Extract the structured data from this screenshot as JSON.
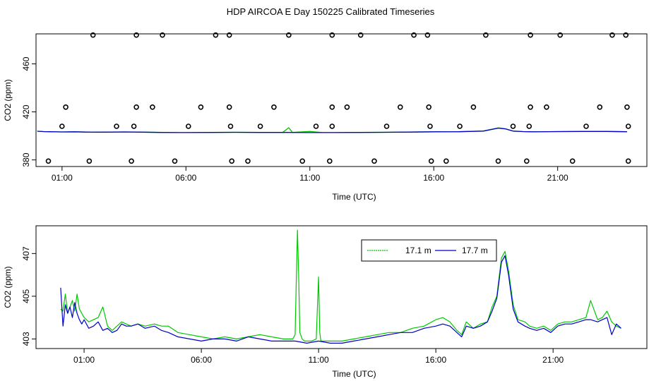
{
  "title": "HDP AIRCOA E  Day 150225  Calibrated Timeseries",
  "chart_data": [
    {
      "type": "scatter",
      "xlabel": "Time (UTC)",
      "ylabel": "CO2 (ppm)",
      "x_ticks": [
        {
          "value": 1,
          "label": "01:00"
        },
        {
          "value": 6,
          "label": "06:00"
        },
        {
          "value": 11,
          "label": "11:00"
        },
        {
          "value": 16,
          "label": "16:00"
        },
        {
          "value": 21,
          "label": "21:00"
        }
      ],
      "y_ticks": [
        380,
        420,
        460
      ],
      "xlim": [
        -0.05,
        24.6
      ],
      "ylim": [
        374.5,
        485
      ],
      "grid": false,
      "calibration_points": [
        {
          "x": 1.15,
          "y": 424
        },
        {
          "x": 2.25,
          "y": 484
        },
        {
          "x": 4.0,
          "y": 484
        },
        {
          "x": 5.05,
          "y": 484
        },
        {
          "x": 7.2,
          "y": 484
        },
        {
          "x": 7.75,
          "y": 484
        },
        {
          "x": 10.15,
          "y": 484
        },
        {
          "x": 11.9,
          "y": 484
        },
        {
          "x": 13.05,
          "y": 484
        },
        {
          "x": 15.2,
          "y": 484
        },
        {
          "x": 15.75,
          "y": 484
        },
        {
          "x": 18.1,
          "y": 484
        },
        {
          "x": 19.9,
          "y": 484
        },
        {
          "x": 21.1,
          "y": 484
        },
        {
          "x": 23.2,
          "y": 484
        },
        {
          "x": 23.75,
          "y": 484
        },
        {
          "x": 0.45,
          "y": 379
        },
        {
          "x": 2.1,
          "y": 379
        },
        {
          "x": 3.8,
          "y": 379
        },
        {
          "x": 5.55,
          "y": 379
        },
        {
          "x": 7.85,
          "y": 379
        },
        {
          "x": 8.5,
          "y": 379
        },
        {
          "x": 10.7,
          "y": 379
        },
        {
          "x": 11.8,
          "y": 379
        },
        {
          "x": 13.6,
          "y": 379
        },
        {
          "x": 15.9,
          "y": 379
        },
        {
          "x": 16.5,
          "y": 379
        },
        {
          "x": 18.6,
          "y": 379
        },
        {
          "x": 19.75,
          "y": 379
        },
        {
          "x": 21.6,
          "y": 379
        },
        {
          "x": 23.85,
          "y": 379
        },
        {
          "x": 4.0,
          "y": 424
        },
        {
          "x": 4.65,
          "y": 424
        },
        {
          "x": 6.6,
          "y": 424
        },
        {
          "x": 7.75,
          "y": 424
        },
        {
          "x": 9.55,
          "y": 424
        },
        {
          "x": 11.9,
          "y": 424
        },
        {
          "x": 12.5,
          "y": 424
        },
        {
          "x": 14.65,
          "y": 424
        },
        {
          "x": 15.8,
          "y": 424
        },
        {
          "x": 17.6,
          "y": 424
        },
        {
          "x": 19.9,
          "y": 424
        },
        {
          "x": 20.55,
          "y": 424
        },
        {
          "x": 22.7,
          "y": 424
        },
        {
          "x": 23.8,
          "y": 424
        },
        {
          "x": 1.0,
          "y": 408
        },
        {
          "x": 3.2,
          "y": 408
        },
        {
          "x": 3.9,
          "y": 408
        },
        {
          "x": 6.1,
          "y": 408
        },
        {
          "x": 7.8,
          "y": 408
        },
        {
          "x": 9.0,
          "y": 408
        },
        {
          "x": 11.25,
          "y": 408
        },
        {
          "x": 11.9,
          "y": 408
        },
        {
          "x": 14.1,
          "y": 408
        },
        {
          "x": 15.85,
          "y": 408
        },
        {
          "x": 17.05,
          "y": 408
        },
        {
          "x": 19.2,
          "y": 408
        },
        {
          "x": 19.85,
          "y": 408
        },
        {
          "x": 22.15,
          "y": 408
        },
        {
          "x": 23.85,
          "y": 408
        }
      ],
      "series": [
        {
          "color": "#00c800",
          "x": [
            0,
            0.25,
            0.5,
            1,
            1.5,
            2,
            2.5,
            3,
            3.5,
            4,
            5,
            6,
            7,
            8,
            9,
            9.9,
            10.15,
            10.3,
            11,
            11.5,
            12,
            13,
            14,
            15,
            16,
            17,
            18,
            18.6,
            18.9,
            19.2,
            19.6,
            20,
            21,
            22,
            23,
            23.8
          ],
          "y": [
            403.9,
            403.6,
            403.5,
            403.3,
            403.4,
            403.2,
            403.1,
            403.2,
            403.3,
            403.2,
            402.9,
            402.8,
            402.9,
            403.0,
            402.9,
            402.9,
            406.8,
            402.9,
            403.7,
            402.8,
            402.8,
            402.9,
            403.0,
            403.2,
            403.4,
            403.5,
            404.1,
            406.7,
            405.9,
            404.0,
            403.6,
            403.4,
            403.6,
            403.7,
            403.7,
            403.5
          ]
        },
        {
          "color": "#0000c8",
          "x": [
            0,
            0.25,
            0.5,
            1,
            1.5,
            2,
            2.5,
            3,
            3.5,
            4,
            5,
            6,
            7,
            8,
            9,
            10,
            11,
            12,
            13,
            14,
            15,
            16,
            17,
            18,
            18.6,
            18.9,
            19.2,
            19.6,
            20,
            21,
            22,
            23,
            23.8
          ],
          "y": [
            403.9,
            403.6,
            403.5,
            403.3,
            403.4,
            403.2,
            403.1,
            403.2,
            403.3,
            403.2,
            402.9,
            402.8,
            402.9,
            403.0,
            402.9,
            402.9,
            402.8,
            402.8,
            402.9,
            403.0,
            403.2,
            403.4,
            403.5,
            404.0,
            406.5,
            405.8,
            404.0,
            403.6,
            403.4,
            403.6,
            403.7,
            403.7,
            403.5
          ]
        }
      ]
    },
    {
      "type": "line",
      "xlabel": "Time (UTC)",
      "ylabel": "CO2 (ppm)",
      "x_ticks": [
        {
          "value": 1,
          "label": "01:00"
        },
        {
          "value": 6,
          "label": "06:00"
        },
        {
          "value": 11,
          "label": "11:00"
        },
        {
          "value": 16,
          "label": "16:00"
        },
        {
          "value": 21,
          "label": "21:00"
        }
      ],
      "y_ticks": [
        403,
        405,
        407
      ],
      "xlim": [
        -1.05,
        25.0
      ],
      "ylim": [
        402.55,
        408.3
      ],
      "grid": false,
      "legend": {
        "position": "top-right",
        "entries": [
          "17.1 m",
          "17.7 m"
        ]
      },
      "series": [
        {
          "name": "17.1 m",
          "color": "#00c800",
          "x": [
            0,
            0.1,
            0.2,
            0.3,
            0.4,
            0.5,
            0.6,
            0.7,
            0.8,
            0.9,
            1.0,
            1.2,
            1.4,
            1.6,
            1.8,
            2.0,
            2.2,
            2.4,
            2.6,
            2.8,
            3.0,
            3.3,
            3.6,
            4.0,
            4.3,
            4.6,
            5.0,
            5.5,
            6.0,
            6.5,
            7.0,
            7.5,
            8.0,
            8.5,
            9.0,
            9.5,
            9.9,
            10.0,
            10.05,
            10.1,
            10.15,
            10.2,
            10.3,
            10.4,
            10.7,
            10.9,
            11.0,
            11.05,
            11.1,
            11.2,
            11.5,
            12.0,
            12.5,
            13.0,
            13.5,
            14.0,
            14.5,
            15.0,
            15.5,
            16.0,
            16.3,
            16.6,
            16.9,
            17.1,
            17.3,
            17.6,
            17.9,
            18.2,
            18.4,
            18.6,
            18.8,
            18.95,
            19.1,
            19.3,
            19.5,
            19.8,
            20.0,
            20.3,
            20.6,
            20.9,
            21.2,
            21.5,
            21.8,
            22.1,
            22.4,
            22.6,
            22.9,
            23.1,
            23.3,
            23.5,
            23.7,
            23.9
          ],
          "y": [
            404.4,
            404.3,
            405.1,
            404.2,
            404.5,
            404.8,
            404.3,
            405.1,
            404.4,
            404.2,
            404.0,
            403.8,
            403.9,
            404.0,
            404.5,
            403.6,
            403.4,
            403.6,
            403.8,
            403.7,
            403.6,
            403.7,
            403.6,
            403.7,
            403.6,
            403.6,
            403.3,
            403.2,
            403.1,
            403.0,
            403.1,
            403.0,
            403.1,
            403.2,
            403.1,
            403.0,
            403.0,
            403.2,
            405.8,
            408.1,
            406.0,
            403.3,
            403.0,
            402.9,
            402.9,
            403.0,
            405.9,
            403.3,
            402.9,
            402.9,
            402.9,
            402.9,
            403.0,
            403.1,
            403.2,
            403.3,
            403.3,
            403.5,
            403.6,
            403.9,
            404.0,
            403.8,
            403.4,
            403.2,
            403.8,
            403.5,
            403.7,
            403.8,
            404.5,
            405.0,
            406.8,
            407.1,
            406.2,
            404.6,
            403.9,
            403.8,
            403.6,
            403.5,
            403.6,
            403.4,
            403.7,
            403.8,
            403.8,
            403.9,
            404.0,
            404.8,
            403.9,
            404.0,
            404.3,
            403.8,
            403.6,
            403.5
          ]
        },
        {
          "name": "17.7 m",
          "color": "#0000c8",
          "x": [
            0,
            0.1,
            0.2,
            0.3,
            0.4,
            0.5,
            0.6,
            0.7,
            0.8,
            0.9,
            1.0,
            1.2,
            1.4,
            1.6,
            1.8,
            2.0,
            2.2,
            2.4,
            2.6,
            2.8,
            3.0,
            3.3,
            3.6,
            4.0,
            4.3,
            4.6,
            5.0,
            5.5,
            6.0,
            6.5,
            7.0,
            7.5,
            8.0,
            8.5,
            9.0,
            9.5,
            10.0,
            10.5,
            11.0,
            11.5,
            12.0,
            12.5,
            13.0,
            13.5,
            14.0,
            14.5,
            15.0,
            15.5,
            16.0,
            16.3,
            16.6,
            16.9,
            17.1,
            17.3,
            17.6,
            17.9,
            18.2,
            18.4,
            18.6,
            18.8,
            18.95,
            19.1,
            19.3,
            19.5,
            19.8,
            20.0,
            20.3,
            20.6,
            20.9,
            21.2,
            21.5,
            21.8,
            22.1,
            22.4,
            22.6,
            22.9,
            23.1,
            23.3,
            23.5,
            23.7,
            23.9
          ],
          "y": [
            405.4,
            403.6,
            404.6,
            404.2,
            404.5,
            404.0,
            404.7,
            404.2,
            403.9,
            403.7,
            403.9,
            403.5,
            403.6,
            403.8,
            403.4,
            403.5,
            403.3,
            403.4,
            403.7,
            403.6,
            403.6,
            403.7,
            403.5,
            403.6,
            403.4,
            403.3,
            403.1,
            403.0,
            402.9,
            403.0,
            403.0,
            402.9,
            403.1,
            403.0,
            402.9,
            402.9,
            402.9,
            402.8,
            402.9,
            402.8,
            402.8,
            402.9,
            403.0,
            403.1,
            403.2,
            403.3,
            403.3,
            403.5,
            403.6,
            403.7,
            403.6,
            403.3,
            403.1,
            403.6,
            403.5,
            403.6,
            403.8,
            404.3,
            404.9,
            406.6,
            406.9,
            406.0,
            404.4,
            403.8,
            403.6,
            403.5,
            403.4,
            403.5,
            403.3,
            403.6,
            403.7,
            403.7,
            403.8,
            403.9,
            403.9,
            403.8,
            403.9,
            404.0,
            403.2,
            403.7,
            403.5
          ]
        }
      ]
    }
  ]
}
